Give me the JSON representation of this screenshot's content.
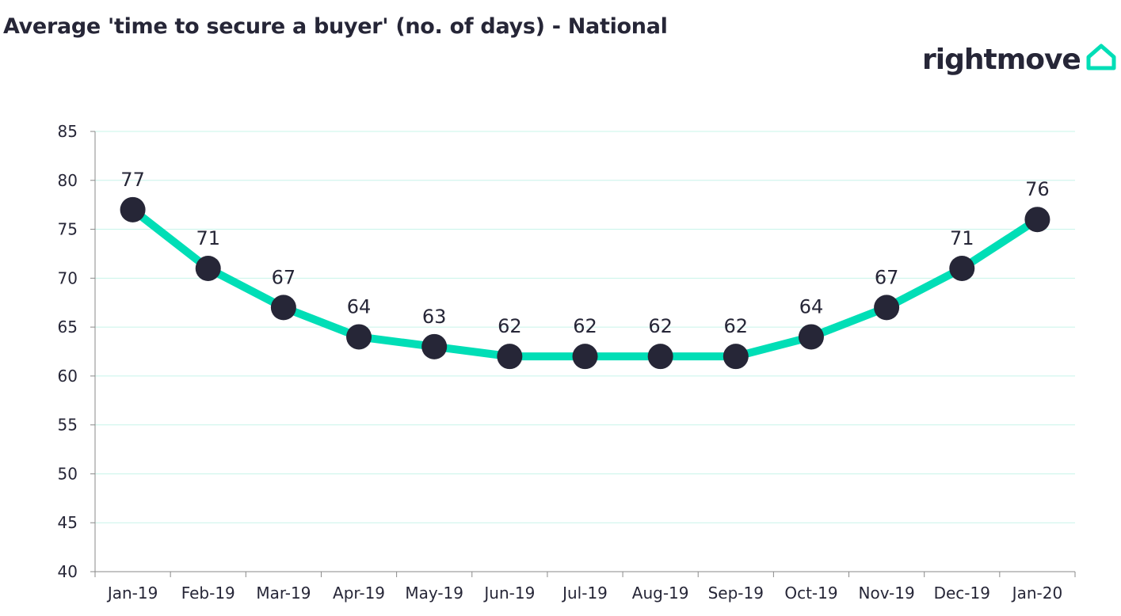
{
  "brand": {
    "name": "rightmove",
    "text_color": "#262637",
    "accent_color": "#00DEB6"
  },
  "chart_data": {
    "type": "line",
    "title": "Average 'time to secure a buyer' (no. of days) - National",
    "categories": [
      "Jan-19",
      "Feb-19",
      "Mar-19",
      "Apr-19",
      "May-19",
      "Jun-19",
      "Jul-19",
      "Aug-19",
      "Sep-19",
      "Oct-19",
      "Nov-19",
      "Dec-19",
      "Jan-20"
    ],
    "series": [
      {
        "values": [
          77,
          71,
          67,
          64,
          63,
          62,
          62,
          62,
          62,
          64,
          67,
          71,
          76
        ],
        "line_color": "#00DEB6",
        "marker_color": "#262637"
      }
    ],
    "ylim": [
      40,
      85
    ],
    "yticks": [
      40,
      45,
      50,
      55,
      60,
      65,
      70,
      75,
      80,
      85
    ],
    "xlabel": "",
    "ylabel": "",
    "grid": true,
    "grid_color": "#C8F4EA",
    "data_labels": true,
    "legend": "none"
  }
}
